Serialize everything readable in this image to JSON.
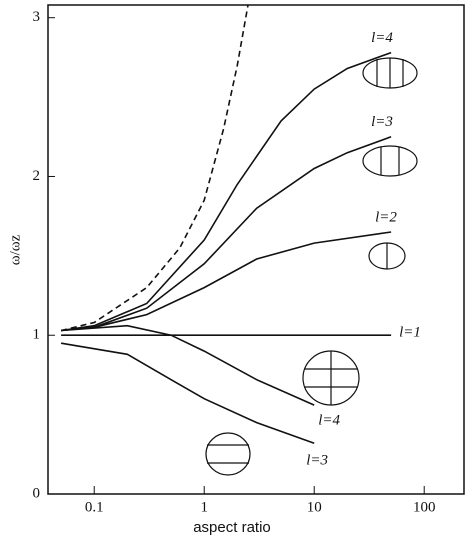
{
  "chart_data": {
    "type": "line",
    "xlabel": "aspect ratio",
    "ylabel": "ω/ωz",
    "xscale": "log",
    "xlim": [
      0.038,
      230
    ],
    "ylim": [
      0,
      3.08
    ],
    "xticks": [
      0.1,
      1,
      10,
      100
    ],
    "yticks": [
      0,
      1,
      2,
      3
    ],
    "series": [
      {
        "name": "l=4",
        "color": "#111111",
        "x": [
          0.05,
          0.1,
          0.3,
          1,
          2,
          5,
          10,
          20,
          50
        ],
        "values": [
          1.03,
          1.06,
          1.2,
          1.6,
          1.95,
          2.35,
          2.55,
          2.68,
          2.78
        ]
      },
      {
        "name": "l=3",
        "color": "#111111",
        "x": [
          0.05,
          0.1,
          0.3,
          1,
          3,
          10,
          20,
          50
        ],
        "values": [
          1.03,
          1.05,
          1.17,
          1.45,
          1.8,
          2.05,
          2.15,
          2.25
        ]
      },
      {
        "name": "l=2",
        "color": "#111111",
        "x": [
          0.05,
          0.1,
          0.3,
          1,
          3,
          10,
          50
        ],
        "values": [
          1.03,
          1.05,
          1.13,
          1.3,
          1.48,
          1.58,
          1.65
        ]
      },
      {
        "name": "l=1",
        "color": "#111111",
        "x": [
          0.05,
          50
        ],
        "values": [
          1.0,
          1.0
        ]
      },
      {
        "name": "l=4",
        "color": "#111111",
        "x": [
          0.05,
          0.2,
          0.5,
          1,
          3,
          10
        ],
        "values": [
          1.03,
          1.06,
          1.0,
          0.9,
          0.72,
          0.56
        ]
      },
      {
        "name": "l=3",
        "color": "#111111",
        "x": [
          0.05,
          0.2,
          0.5,
          1,
          3,
          10
        ],
        "values": [
          0.95,
          0.88,
          0.72,
          0.6,
          0.45,
          0.32
        ]
      },
      {
        "color": "#111111",
        "dashed": true,
        "x": [
          0.05,
          0.1,
          0.3,
          0.6,
          1,
          1.5,
          2,
          2.5
        ],
        "values": [
          1.03,
          1.08,
          1.3,
          1.55,
          1.85,
          2.3,
          2.7,
          3.08
        ]
      }
    ]
  }
}
